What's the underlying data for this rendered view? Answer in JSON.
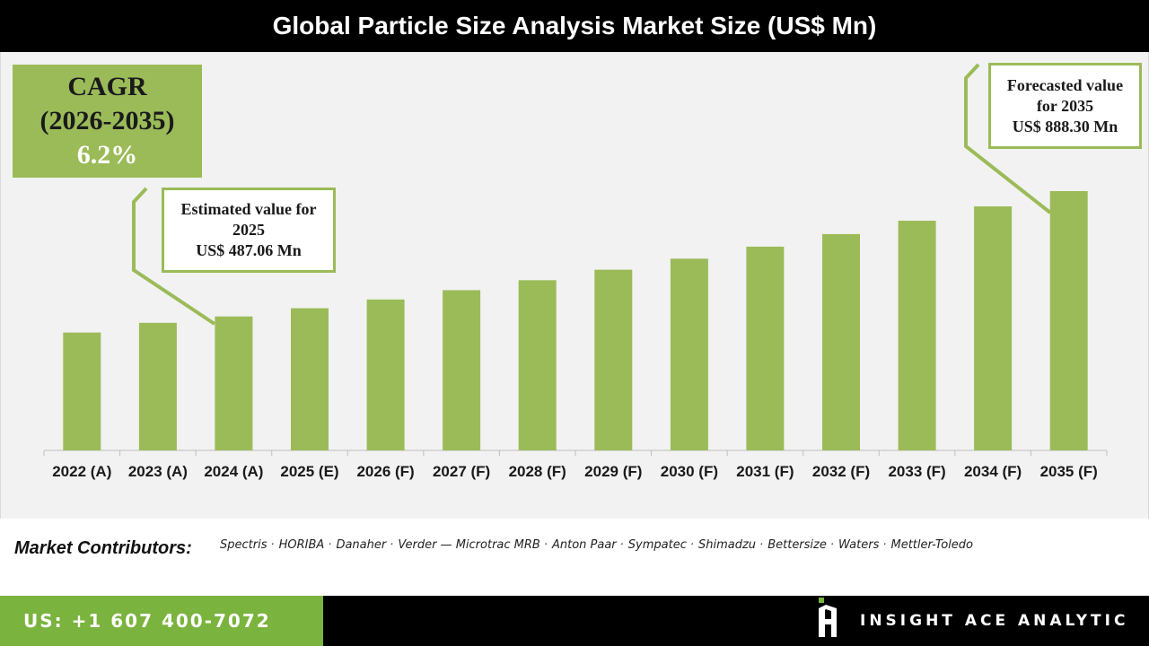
{
  "title": "Global Particle Size Analysis Market Size (US$ Mn)",
  "cagr": {
    "label": "CAGR",
    "period": "(2026-2035)",
    "value": "6.2%"
  },
  "callouts": {
    "estimated": {
      "line1": "Estimated value for",
      "line2": "2025",
      "line3": "US$ 487.06 Mn"
    },
    "forecasted": {
      "line1": "Forecasted value",
      "line2": "for 2035",
      "line3": "US$ 888.30 Mn"
    }
  },
  "chart_data": {
    "type": "bar",
    "categories": [
      "2022 (A)",
      "2023 (A)",
      "2024 (A)",
      "2025 (E)",
      "2026 (F)",
      "2027 (F)",
      "2028 (F)",
      "2029 (F)",
      "2030 (F)",
      "2031 (F)",
      "2032 (F)",
      "2033 (F)",
      "2034 (F)",
      "2035 (F)"
    ],
    "values": [
      404,
      437,
      459,
      487.06,
      517,
      549,
      583,
      619,
      657,
      698,
      741,
      787,
      836,
      888.3
    ],
    "title": "Global Particle Size Analysis Market Size (US$ Mn)",
    "xlabel": "",
    "ylabel": "",
    "ylim": [
      0,
      1000
    ],
    "grid": false,
    "legend": "none",
    "bar_color": "#9bbb59"
  },
  "contributors": {
    "label": "Market Contributors:",
    "items": [
      "Spectris",
      "HORIBA",
      "Danaher",
      "Verder — Microtrac MRB",
      "Anton Paar",
      "Sympatec",
      "Shimadzu",
      "Bettersize",
      "Waters",
      "Mettler-Toledo"
    ]
  },
  "footer": {
    "phone": "US: +1 607 400-7072",
    "brand": "INSIGHT ACE ANALYTIC"
  },
  "colors": {
    "accent_green": "#9bbb59",
    "footer_green": "#7ab33e",
    "title_bg": "#000000",
    "chart_bg": "#f2f2f2"
  }
}
